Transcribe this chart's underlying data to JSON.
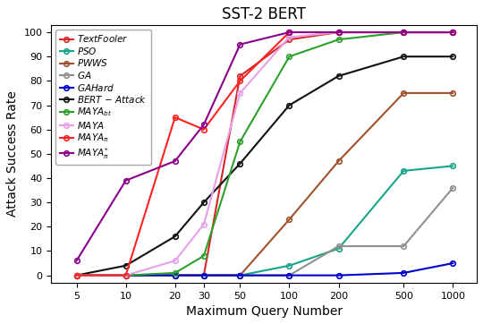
{
  "title": "SST-2 BERT",
  "xlabel": "Maximum Query Number",
  "ylabel": "Attack Success Rate",
  "x": [
    5,
    10,
    20,
    30,
    50,
    100,
    200,
    500,
    1000
  ],
  "series": {
    "TextFooler": {
      "color": "#d62728",
      "y": [
        0,
        0,
        0,
        0,
        82,
        97,
        100,
        100,
        100
      ]
    },
    "PSO": {
      "color": "#17a589",
      "y": [
        0,
        0,
        0,
        0,
        0,
        4,
        11,
        43,
        45
      ]
    },
    "PWWS": {
      "color": "#a0522d",
      "y": [
        0,
        0,
        0,
        0,
        0,
        23,
        47,
        75,
        75
      ]
    },
    "GA": {
      "color": "#909090",
      "y": [
        0,
        0,
        0,
        0,
        0,
        0,
        12,
        12,
        36
      ]
    },
    "GAHard": {
      "color": "#0000cc",
      "y": [
        0,
        0,
        0,
        0,
        0,
        0,
        0,
        1,
        5
      ]
    },
    "BERT_Attack": {
      "color": "#111111",
      "y": [
        0,
        4,
        16,
        30,
        46,
        70,
        82,
        90,
        90
      ]
    },
    "MAYAbt": {
      "color": "#2ca02c",
      "y": [
        0,
        0,
        1,
        8,
        55,
        90,
        97,
        100,
        100
      ]
    },
    "MAYA": {
      "color": "#e8a0e8",
      "y": [
        0,
        0,
        6,
        21,
        75,
        98,
        100,
        100,
        100
      ]
    },
    "MAYApi": {
      "color": "#ff2222",
      "y": [
        0,
        0,
        65,
        60,
        80,
        100,
        100,
        100,
        100
      ]
    },
    "MAYApi_star": {
      "color": "#8B008B",
      "y": [
        6,
        39,
        47,
        62,
        95,
        100,
        100,
        100,
        100
      ]
    }
  },
  "legend_labels": [
    "TextFooler",
    "PSO",
    "PWWS",
    "GA",
    "GAHard",
    "BERT – Attack",
    "MAYA$_{bt}$",
    "MAYA",
    "MAYA$_{\\pi}$",
    "MAYA$_{\\pi}^{*}$"
  ]
}
